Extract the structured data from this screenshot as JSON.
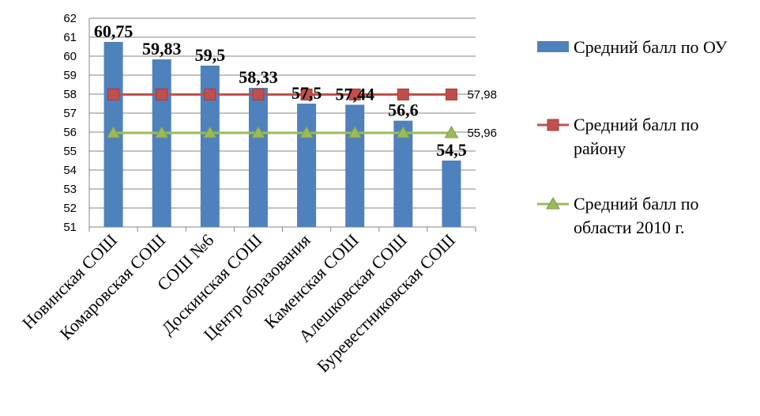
{
  "chart_data": {
    "type": "bar",
    "categories": [
      "Новинская СОШ",
      "Комаровская СОШ",
      "СОШ №6",
      "Доскинская СОШ",
      "Центр образования",
      "Каменская СОШ",
      "Алешковская СОШ",
      "Буревестниковская СОШ"
    ],
    "series": [
      {
        "name": "Средний балл по ОУ",
        "kind": "bar",
        "color": "#4F81BD",
        "values": [
          60.75,
          59.83,
          59.5,
          58.33,
          57.5,
          57.44,
          56.6,
          54.5
        ],
        "labels": [
          "60,75",
          "59,83",
          "59,5",
          "58,33",
          "57,5",
          "57,44",
          "56,6",
          "54,5"
        ]
      },
      {
        "name_lines": [
          "Средний балл по",
          "району"
        ],
        "kind": "line",
        "marker": "square",
        "color": "#C0504D",
        "values": [
          57.98,
          57.98,
          57.98,
          57.98,
          57.98,
          57.98,
          57.98,
          57.98
        ],
        "end_label": "57,98"
      },
      {
        "name_lines": [
          "Средний балл по",
          "области 2010 г."
        ],
        "kind": "line",
        "marker": "triangle",
        "color": "#9BBB59",
        "values": [
          55.96,
          55.96,
          55.96,
          55.96,
          55.96,
          55.96,
          55.96,
          55.96
        ],
        "end_label": "55,96"
      }
    ],
    "ylim": [
      51,
      62
    ],
    "yticks": [
      "51",
      "52",
      "53",
      "54",
      "55",
      "56",
      "57",
      "58",
      "59",
      "60",
      "61",
      "62"
    ],
    "grid": true,
    "legend": "right"
  }
}
